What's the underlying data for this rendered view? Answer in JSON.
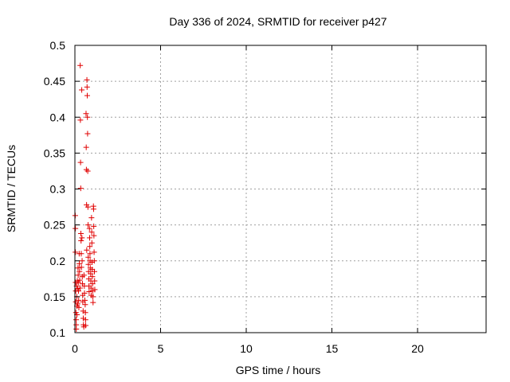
{
  "chart_data": {
    "type": "scatter",
    "title": "Day 336 of 2024, SRMTID for receiver p427",
    "xlabel": "GPS time / hours",
    "ylabel": "SRMTID / TECUs",
    "xlim": [
      0,
      24
    ],
    "ylim": [
      0.1,
      0.5
    ],
    "xticks": [
      0,
      5,
      10,
      15,
      20
    ],
    "xtick_labels": [
      "0",
      "5",
      "10",
      "15",
      "20"
    ],
    "yticks": [
      0.1,
      0.15,
      0.2,
      0.25,
      0.3,
      0.35,
      0.4,
      0.45,
      0.5
    ],
    "ytick_labels": [
      "0.1",
      "0.15",
      "0.2",
      "0.25",
      "0.3",
      "0.35",
      "0.4",
      "0.45",
      "0.5"
    ],
    "grid": true,
    "marker": "plus",
    "color": "#e00000",
    "series": [
      {
        "points": [
          [
            0.02,
            0.263
          ],
          [
            0.03,
            0.245
          ],
          [
            0.03,
            0.212
          ],
          [
            0.04,
            0.17
          ],
          [
            0.05,
            0.158
          ],
          [
            0.05,
            0.143
          ],
          [
            0.06,
            0.128
          ],
          [
            0.07,
            0.118
          ],
          [
            0.08,
            0.111
          ],
          [
            0.08,
            0.105
          ],
          [
            0.1,
            0.165
          ],
          [
            0.11,
            0.15
          ],
          [
            0.12,
            0.137
          ],
          [
            0.12,
            0.125
          ],
          [
            0.14,
            0.172
          ],
          [
            0.15,
            0.161
          ],
          [
            0.16,
            0.14
          ],
          [
            0.18,
            0.19
          ],
          [
            0.19,
            0.18
          ],
          [
            0.2,
            0.17
          ],
          [
            0.21,
            0.158
          ],
          [
            0.22,
            0.145
          ],
          [
            0.23,
            0.135
          ],
          [
            0.25,
            0.21
          ],
          [
            0.26,
            0.196
          ],
          [
            0.27,
            0.185
          ],
          [
            0.28,
            0.173
          ],
          [
            0.3,
            0.162
          ],
          [
            0.31,
            0.472
          ],
          [
            0.32,
            0.396
          ],
          [
            0.33,
            0.337
          ],
          [
            0.34,
            0.301
          ],
          [
            0.35,
            0.238
          ],
          [
            0.36,
            0.228
          ],
          [
            0.37,
            0.21
          ],
          [
            0.38,
            0.191
          ],
          [
            0.4,
            0.438
          ],
          [
            0.41,
            0.232
          ],
          [
            0.42,
            0.2
          ],
          [
            0.43,
            0.178
          ],
          [
            0.44,
            0.168
          ],
          [
            0.45,
            0.152
          ],
          [
            0.46,
            0.143
          ],
          [
            0.48,
            0.13
          ],
          [
            0.49,
            0.12
          ],
          [
            0.5,
            0.111
          ],
          [
            0.52,
            0.108
          ],
          [
            0.53,
            0.18
          ],
          [
            0.55,
            0.165
          ],
          [
            0.56,
            0.155
          ],
          [
            0.58,
            0.145
          ],
          [
            0.6,
            0.139
          ],
          [
            0.61,
            0.128
          ],
          [
            0.62,
            0.118
          ],
          [
            0.63,
            0.11
          ],
          [
            0.65,
            0.405
          ],
          [
            0.66,
            0.358
          ],
          [
            0.67,
            0.327
          ],
          [
            0.68,
            0.278
          ],
          [
            0.69,
            0.215
          ],
          [
            0.7,
            0.452
          ],
          [
            0.71,
            0.442
          ],
          [
            0.72,
            0.43
          ],
          [
            0.73,
            0.4
          ],
          [
            0.74,
            0.377
          ],
          [
            0.75,
            0.325
          ],
          [
            0.76,
            0.275
          ],
          [
            0.77,
            0.25
          ],
          [
            0.78,
            0.205
          ],
          [
            0.79,
            0.195
          ],
          [
            0.8,
            0.185
          ],
          [
            0.81,
            0.175
          ],
          [
            0.82,
            0.165
          ],
          [
            0.83,
            0.157
          ],
          [
            0.85,
            0.245
          ],
          [
            0.86,
            0.232
          ],
          [
            0.87,
            0.22
          ],
          [
            0.88,
            0.21
          ],
          [
            0.89,
            0.2
          ],
          [
            0.9,
            0.19
          ],
          [
            0.92,
            0.182
          ],
          [
            0.93,
            0.172
          ],
          [
            0.94,
            0.162
          ],
          [
            0.95,
            0.152
          ],
          [
            0.97,
            0.26
          ],
          [
            0.98,
            0.24
          ],
          [
            0.99,
            0.225
          ],
          [
            1.0,
            0.198
          ],
          [
            1.01,
            0.188
          ],
          [
            1.02,
            0.178
          ],
          [
            1.03,
            0.168
          ],
          [
            1.04,
            0.158
          ],
          [
            1.05,
            0.15
          ],
          [
            1.06,
            0.142
          ],
          [
            1.08,
            0.276
          ],
          [
            1.09,
            0.272
          ],
          [
            1.1,
            0.248
          ],
          [
            1.11,
            0.235
          ],
          [
            1.12,
            0.212
          ],
          [
            1.13,
            0.2
          ],
          [
            1.14,
            0.185
          ],
          [
            1.15,
            0.172
          ],
          [
            1.16,
            0.16
          ]
        ]
      }
    ]
  }
}
